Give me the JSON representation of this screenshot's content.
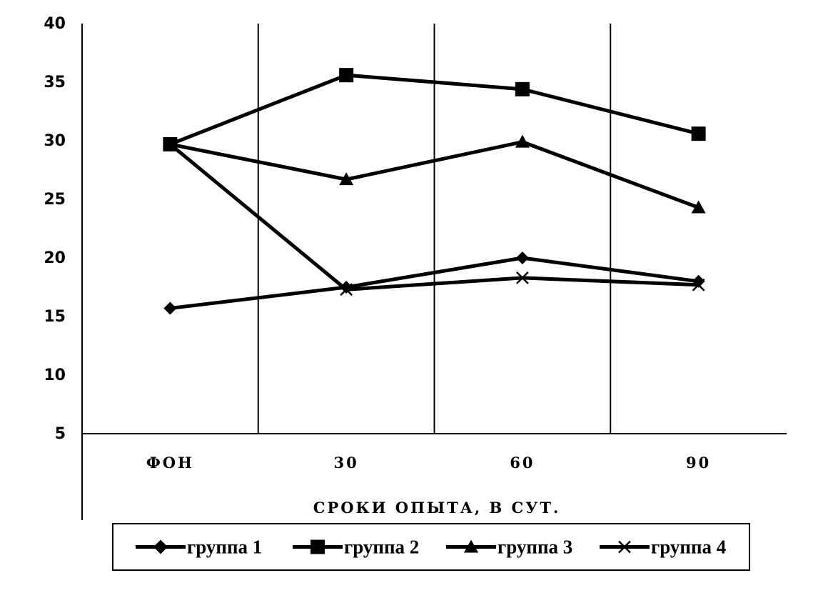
{
  "chart_data": {
    "type": "line",
    "title": "",
    "xlabel": "СРОКИ ОПЫТА, В СУТ.",
    "ylabel": "",
    "categories": [
      "ФОН",
      "30",
      "60",
      "90"
    ],
    "ylim": [
      5,
      40
    ],
    "yticks": [
      5,
      10,
      15,
      20,
      25,
      30,
      35,
      40
    ],
    "grid": "vertical separators between categories",
    "legend_position": "bottom",
    "series": [
      {
        "name": "группа 1",
        "marker": "diamond",
        "values": [
          15.7,
          17.5,
          20.0,
          18.0
        ]
      },
      {
        "name": "группа 2",
        "marker": "square",
        "values": [
          29.7,
          35.6,
          34.4,
          30.6
        ]
      },
      {
        "name": "группа 3",
        "marker": "triangle",
        "values": [
          29.7,
          26.7,
          29.9,
          24.3
        ]
      },
      {
        "name": "группа 4",
        "marker": "x",
        "values": [
          29.7,
          17.3,
          18.3,
          17.7
        ]
      }
    ],
    "line_color": "#000000"
  }
}
